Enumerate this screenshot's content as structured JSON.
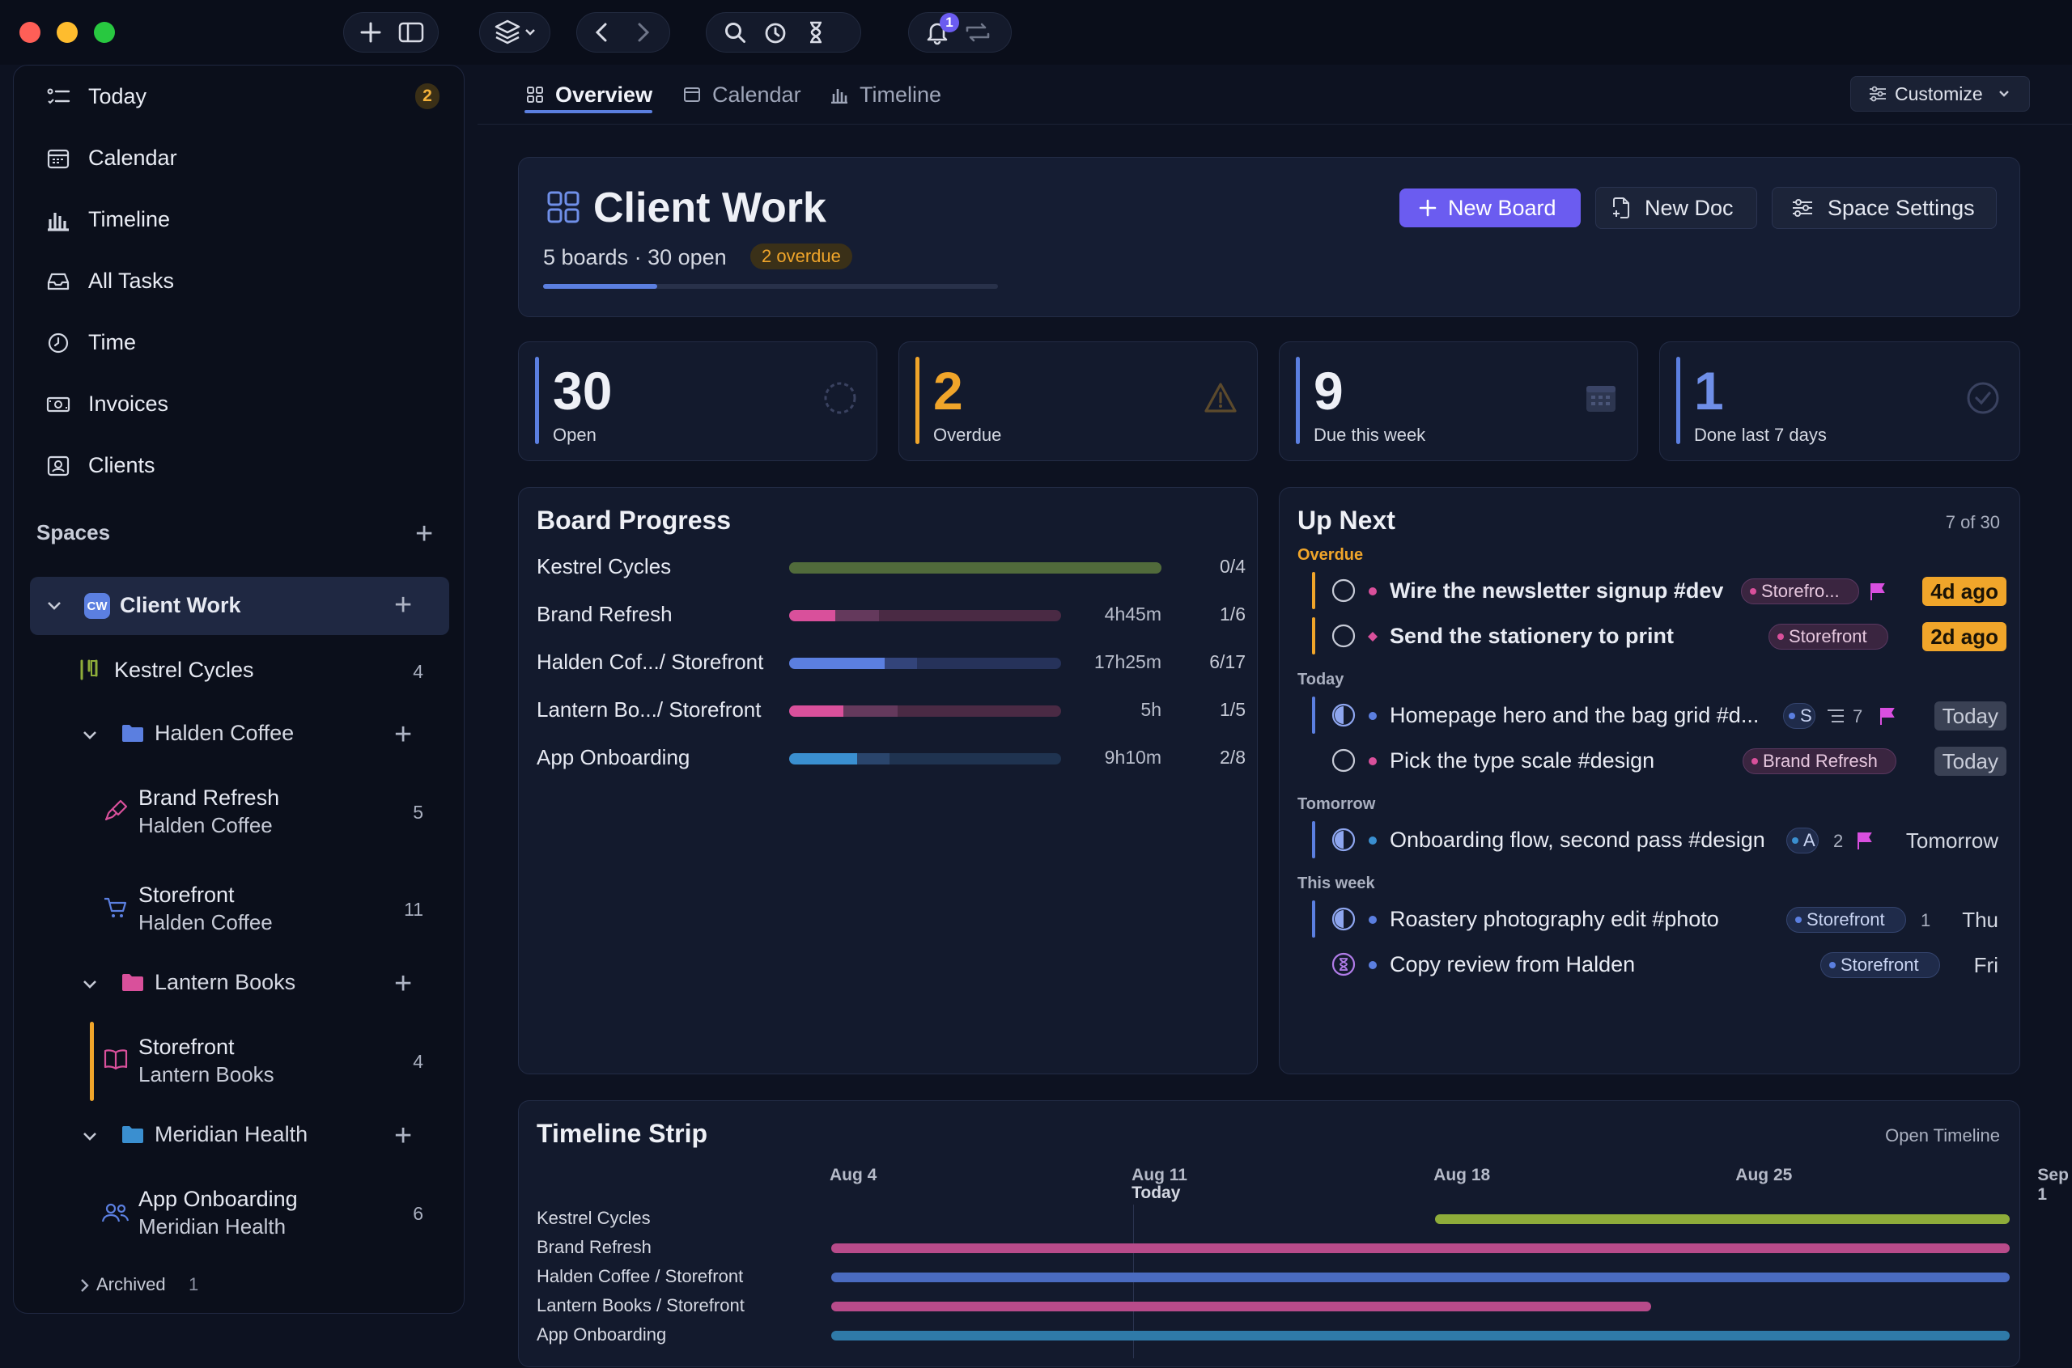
{
  "window": {
    "notification_count": "1"
  },
  "sidebar": {
    "nav": [
      {
        "label": "Today",
        "icon": "today-list-icon",
        "badge": "2"
      },
      {
        "label": "Calendar",
        "icon": "calendar-icon"
      },
      {
        "label": "Timeline",
        "icon": "bar-chart-icon"
      },
      {
        "label": "All Tasks",
        "icon": "inbox-icon"
      },
      {
        "label": "Time",
        "icon": "clock-icon"
      },
      {
        "label": "Invoices",
        "icon": "money-icon"
      },
      {
        "label": "Clients",
        "icon": "contact-card-icon"
      }
    ],
    "spaces_heading": "Spaces",
    "space": {
      "avatar": "CW",
      "name": "Client Work"
    },
    "tree": {
      "kestrel": {
        "name": "Kestrel Cycles",
        "count": "4"
      },
      "halden": {
        "name": "Halden Coffee"
      },
      "brand_refresh": {
        "name": "Brand Refresh",
        "sub": "Halden Coffee",
        "count": "5"
      },
      "storefront_h": {
        "name": "Storefront",
        "sub": "Halden Coffee",
        "count": "11"
      },
      "lantern": {
        "name": "Lantern Books"
      },
      "storefront_l": {
        "name": "Storefront",
        "sub": "Lantern Books",
        "count": "4"
      },
      "meridian": {
        "name": "Meridian Health"
      },
      "app_onboarding": {
        "name": "App Onboarding",
        "sub": "Meridian Health",
        "count": "6"
      }
    },
    "archived": {
      "label": "Archived",
      "count": "1"
    }
  },
  "tabs": [
    {
      "label": "Overview",
      "active": true
    },
    {
      "label": "Calendar"
    },
    {
      "label": "Timeline"
    }
  ],
  "customize_label": "Customize",
  "header": {
    "title": "Client Work",
    "meta": "5 boards · 30 open",
    "overdue_badge": "2 overdue",
    "progress": 0.25,
    "new_board": "New Board",
    "new_doc": "New Doc",
    "space_settings": "Space Settings"
  },
  "stats": [
    {
      "value": "30",
      "label": "Open",
      "color": "#5b7fe0"
    },
    {
      "value": "2",
      "label": "Overdue",
      "color": "#f0a52a"
    },
    {
      "value": "9",
      "label": "Due this week",
      "color": "#5b7fe0"
    },
    {
      "value": "1",
      "label": "Done last 7 days",
      "color": "#5b7fe0"
    }
  ],
  "board_progress": {
    "title": "Board Progress",
    "rows": [
      {
        "name": "Kestrel Cycles",
        "time": "",
        "count": "0/4",
        "done": 0,
        "estimated": 1.0,
        "color": "#4e7b2e",
        "bg": "#3c4f2c"
      },
      {
        "name": "Brand Refresh",
        "time": "4h45m",
        "count": "1/6",
        "done": 0.17,
        "estimated": 0.33,
        "color": "#d9509b",
        "bg": "#4a2a44"
      },
      {
        "name": "Halden Cof.../ Storefront",
        "time": "17h25m",
        "count": "6/17",
        "done": 0.35,
        "estimated": 0.47,
        "color": "#5b7fe0",
        "bg": "#26325a"
      },
      {
        "name": "Lantern Bo.../ Storefront",
        "time": "5h",
        "count": "1/5",
        "done": 0.2,
        "estimated": 0.4,
        "color": "#d9509b",
        "bg": "#4a2a44"
      },
      {
        "name": "App Onboarding",
        "time": "9h10m",
        "count": "2/8",
        "done": 0.25,
        "estimated": 0.37,
        "color": "#3a8fd0",
        "bg": "#1f3350"
      }
    ]
  },
  "up_next": {
    "title": "Up Next",
    "count": "7 of 30",
    "groups": {
      "overdue": "Overdue",
      "today": "Today",
      "tomorrow": "Tomorrow",
      "week": "This week"
    },
    "items": [
      {
        "title": "Wire the newsletter signup #dev",
        "chip": "Storefro...",
        "due": "4d ago"
      },
      {
        "title": "Send the stationery to print",
        "chip": "Storefront",
        "due": "2d ago"
      },
      {
        "title": "Homepage hero and the bag grid #d...",
        "chip": "S",
        "sub": "7",
        "due": "Today"
      },
      {
        "title": "Pick the type scale #design",
        "chip": "Brand Refresh",
        "due": "Today"
      },
      {
        "title": "Onboarding flow, second pass #design",
        "chip": "A",
        "sub": "2",
        "due": "Tomorrow"
      },
      {
        "title": "Roastery photography edit #photo",
        "chip": "Storefront",
        "sub": "1",
        "due": "Thu"
      },
      {
        "title": "Copy review from Halden",
        "chip": "Storefront",
        "due": "Fri"
      }
    ]
  },
  "timeline": {
    "title": "Timeline Strip",
    "open_link": "Open Timeline",
    "ticks": [
      "Aug 4",
      "Aug 11",
      "Aug 18",
      "Aug 25",
      "Sep 1"
    ],
    "today_label": "Today",
    "rows": [
      {
        "name": "Kestrel Cycles",
        "start": "Aug 18",
        "end": "Sep 3",
        "color": "#8eac3a"
      },
      {
        "name": "Brand Refresh",
        "start": "Aug 4",
        "end": "Sep 3",
        "color": "#b84b8a"
      },
      {
        "name": "Halden Coffee / Storefront",
        "start": "Aug 4",
        "end": "Sep 3",
        "color": "#4a6bc0"
      },
      {
        "name": "Lantern Books / Storefront",
        "start": "Aug 4",
        "end": "Aug 23",
        "color": "#b84b8a"
      },
      {
        "name": "App Onboarding",
        "start": "Aug 4",
        "end": "Sep 3",
        "color": "#2f7aa8"
      }
    ]
  }
}
